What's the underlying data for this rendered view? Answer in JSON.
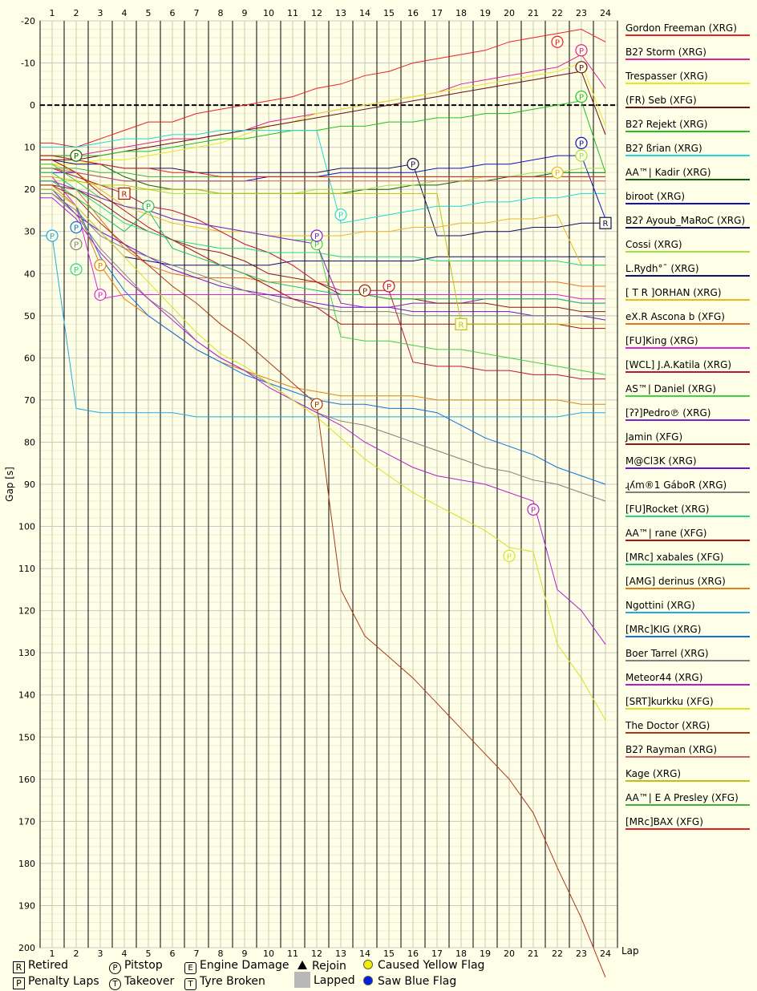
{
  "chart_data": {
    "type": "line",
    "xlabel": "Lap",
    "ylabel": "Gap [s]",
    "xlim": [
      1,
      24
    ],
    "ylim": [
      -20,
      200
    ],
    "x_ticks": [
      "1",
      "2",
      "3",
      "4",
      "5",
      "6",
      "7",
      "8",
      "9",
      "10",
      "11",
      "12",
      "13",
      "14",
      "15",
      "16",
      "17",
      "18",
      "19",
      "20",
      "21",
      "22",
      "23",
      "24"
    ],
    "y_ticks": [
      "-20",
      "-10",
      "0",
      "10",
      "20",
      "30",
      "40",
      "50",
      "60",
      "70",
      "80",
      "90",
      "100",
      "110",
      "120",
      "130",
      "140",
      "150",
      "160",
      "170",
      "180",
      "190",
      "200"
    ],
    "series": [
      {
        "name": "Gordon Freeman (XRG)",
        "color": "#e8202a",
        "values": [
          9,
          10,
          8,
          6,
          4,
          4,
          2,
          1,
          0,
          -1,
          -2,
          -4,
          -5,
          -7,
          -8,
          -10,
          -11,
          -12,
          -13,
          -15,
          -16,
          -17,
          -18,
          -15
        ],
        "events": [
          {
            "lap": 22,
            "mark": "P",
            "value": -15
          }
        ]
      },
      {
        "name": "B2ʔ Storm (XRG)",
        "color": "#e0208c",
        "values": [
          12,
          12,
          11,
          10,
          9,
          8,
          8,
          7,
          6,
          4,
          3,
          2,
          1,
          0,
          -1,
          -2,
          -3,
          -5,
          -6,
          -7,
          -8,
          -9,
          -12,
          -4
        ],
        "events": [
          {
            "lap": 23,
            "mark": "P",
            "value": -13
          }
        ]
      },
      {
        "name": "Trespasser (XRG)",
        "color": "#e8e820",
        "values": [
          14,
          14,
          13,
          13,
          12,
          11,
          10,
          9,
          7,
          5,
          4,
          2,
          1,
          0,
          -1,
          -2,
          -3,
          -4,
          -5,
          -6,
          -7,
          -8,
          -10,
          5
        ]
      },
      {
        "name": "(FR) Seb (XFG)",
        "color": "#6a1010",
        "values": [
          13,
          13,
          12,
          11,
          10,
          9,
          8,
          7,
          6,
          5,
          4,
          3,
          2,
          1,
          0,
          -1,
          -2,
          -3,
          -4,
          -5,
          -6,
          -7,
          -8,
          7
        ],
        "events": [
          {
            "lap": 23,
            "mark": "P",
            "value": -9
          }
        ]
      },
      {
        "name": "B2ʔ Rejekt (XRG)",
        "color": "#20c020",
        "values": [
          12,
          12,
          12,
          11,
          11,
          10,
          9,
          8,
          8,
          7,
          6,
          6,
          5,
          5,
          4,
          4,
          3,
          3,
          2,
          2,
          1,
          0,
          -1,
          16
        ],
        "events": [
          {
            "lap": 23,
            "mark": "P",
            "value": -2
          }
        ]
      },
      {
        "name": "B2ʔ ßrian (XRG)",
        "color": "#20d8d8",
        "values": [
          10,
          10,
          9,
          8,
          8,
          7,
          7,
          6,
          6,
          6,
          6,
          6,
          28,
          27,
          26,
          25,
          24,
          24,
          23,
          23,
          22,
          22,
          21,
          21
        ],
        "events": [
          {
            "lap": 13,
            "mark": "P",
            "value": 26
          }
        ]
      },
      {
        "name": "AA™| Kadir (XRG)",
        "color": "#106010",
        "values": [
          12,
          13,
          14,
          17,
          19,
          20,
          20,
          21,
          21,
          21,
          21,
          21,
          21,
          20,
          20,
          19,
          19,
          18,
          18,
          17,
          17,
          16,
          16,
          16
        ],
        "events": [
          {
            "lap": 2,
            "mark": "P",
            "value": 12
          }
        ]
      },
      {
        "name": "biroot (XRG)",
        "color": "#1010c0",
        "values": [
          16,
          16,
          17,
          18,
          18,
          18,
          18,
          18,
          18,
          17,
          17,
          17,
          16,
          16,
          16,
          16,
          15,
          15,
          14,
          14,
          13,
          12,
          12,
          27
        ],
        "events": [
          {
            "lap": 23,
            "mark": "P",
            "value": 9
          }
        ]
      },
      {
        "name": "B2ʔ Ayoub_MaRoC (XRG)",
        "color": "#101060",
        "values": [
          13,
          14,
          14,
          15,
          15,
          15,
          16,
          16,
          16,
          16,
          16,
          16,
          15,
          15,
          15,
          14,
          31,
          31,
          30,
          30,
          29,
          29,
          28,
          28
        ],
        "events": [
          {
            "lap": 16,
            "mark": "P",
            "value": 14
          },
          {
            "lap": 24,
            "mark": "R",
            "value": 28
          }
        ]
      },
      {
        "name": "Cossi (XRG)",
        "color": "#a0e040",
        "values": [
          18,
          18,
          19,
          20,
          20,
          21,
          21,
          21,
          21,
          21,
          21,
          20,
          20,
          20,
          19,
          19,
          18,
          18,
          17,
          17,
          16,
          16,
          15,
          15
        ],
        "events": [
          {
            "lap": 23,
            "mark": "P",
            "value": 12
          }
        ]
      },
      {
        "name": "L.Rydh°¯ (XRG)",
        "color": "#101070",
        "values": [
          20,
          24,
          30,
          36,
          37,
          38,
          38,
          38,
          38,
          38,
          37,
          37,
          37,
          37,
          37,
          37,
          36,
          36,
          36,
          36,
          36,
          36,
          36,
          36
        ]
      },
      {
        "name": "[ T R ]ORHAN (XRG)",
        "color": "#e8b820",
        "values": [
          14,
          16,
          20,
          24,
          26,
          28,
          29,
          30,
          30,
          31,
          31,
          31,
          31,
          30,
          30,
          29,
          29,
          28,
          28,
          27,
          27,
          26,
          38,
          38
        ],
        "events": [
          {
            "lap": 22,
            "mark": "P",
            "value": 16
          }
        ]
      },
      {
        "name": "eX.R Ascona b (XFG)",
        "color": "#e87020",
        "values": [
          16,
          20,
          27,
          34,
          38,
          40,
          41,
          41,
          41,
          42,
          42,
          42,
          42,
          42,
          42,
          42,
          42,
          42,
          42,
          42,
          42,
          42,
          43,
          43
        ]
      },
      {
        "name": "[FU]King (XRG)",
        "color": "#e020e0",
        "values": [
          17,
          24,
          46,
          45,
          45,
          45,
          45,
          45,
          45,
          45,
          45,
          45,
          45,
          45,
          45,
          45,
          45,
          45,
          45,
          45,
          45,
          45,
          46,
          46
        ],
        "events": [
          {
            "lap": 3,
            "mark": "P",
            "value": 45
          }
        ]
      },
      {
        "name": "[WCL] J.A.Katila (XRG)",
        "color": "#c01040",
        "values": [
          15,
          17,
          19,
          21,
          24,
          25,
          27,
          30,
          33,
          35,
          38,
          42,
          44,
          44,
          44,
          61,
          62,
          62,
          63,
          63,
          64,
          64,
          65,
          65
        ],
        "events": [
          {
            "lap": 15,
            "mark": "P",
            "value": 43
          }
        ]
      },
      {
        "name": "AS™| Daniel (XRG)",
        "color": "#40d040",
        "values": [
          14,
          18,
          22,
          24,
          25,
          27,
          28,
          29,
          30,
          31,
          32,
          32,
          55,
          56,
          56,
          57,
          58,
          58,
          59,
          60,
          61,
          62,
          63,
          64
        ],
        "events": [
          {
            "lap": 12,
            "mark": "P",
            "value": 33
          }
        ]
      },
      {
        "name": "[ʔʔ]Pedro℗ (XRG)",
        "color": "#8020d0",
        "values": [
          18,
          20,
          22,
          24,
          25,
          27,
          28,
          29,
          30,
          31,
          32,
          33,
          47,
          48,
          48,
          47,
          47,
          47,
          46,
          46,
          46,
          46,
          47,
          47
        ],
        "events": [
          {
            "lap": 12,
            "mark": "P",
            "value": 31
          }
        ]
      },
      {
        "name": "Jamin (XFG)",
        "color": "#8a1818",
        "values": [
          19,
          20,
          23,
          27,
          30,
          32,
          34,
          35,
          37,
          40,
          41,
          42,
          45,
          45,
          46,
          46,
          47,
          47,
          47,
          48,
          48,
          48,
          49,
          49
        ],
        "events": [
          {
            "lap": 14,
            "mark": "P",
            "value": 44
          }
        ]
      },
      {
        "name": "M@Cl3K (XRG)",
        "color": "#7010d0",
        "values": [
          20,
          26,
          30,
          33,
          36,
          39,
          41,
          43,
          44,
          45,
          46,
          47,
          48,
          48,
          48,
          49,
          49,
          49,
          49,
          49,
          50,
          50,
          50,
          51
        ]
      },
      {
        "name": "ɻʎm®1 GáboR (XRG)",
        "color": "#808080",
        "values": [
          21,
          25,
          31,
          34,
          36,
          38,
          40,
          42,
          44,
          46,
          48,
          48,
          49,
          49,
          49,
          50,
          50,
          50,
          50,
          50,
          50,
          50,
          50,
          50
        ],
        "events": [
          {
            "lap": 2,
            "mark": "P",
            "value": 33
          }
        ]
      },
      {
        "name": "[FU]Rocket (XRG)",
        "color": "#20d880",
        "values": [
          16,
          20,
          24,
          28,
          30,
          32,
          33,
          34,
          34,
          35,
          35,
          35,
          36,
          36,
          36,
          36,
          37,
          37,
          37,
          37,
          37,
          37,
          38,
          38
        ],
        "events": [
          {
            "lap": 2,
            "mark": "P",
            "value": 39
          }
        ]
      },
      {
        "name": "AA™| rane (XFG)",
        "color": "#b01010",
        "values": [
          13,
          16,
          21,
          25,
          29,
          32,
          35,
          38,
          40,
          43,
          46,
          48,
          52,
          52,
          52,
          52,
          52,
          52,
          52,
          52,
          52,
          52,
          53,
          53
        ],
        "events": [
          {
            "lap": 4,
            "mark": "R",
            "value": 21
          }
        ]
      },
      {
        "name": "[MRc] xabales (XFG)",
        "color": "#20c060",
        "values": [
          18,
          22,
          26,
          30,
          25,
          34,
          36,
          38,
          40,
          42,
          43,
          44,
          45,
          45,
          46,
          46,
          46,
          46,
          46,
          46,
          46,
          46,
          47,
          47
        ],
        "events": [
          {
            "lap": 5,
            "mark": "P",
            "value": 24
          }
        ]
      },
      {
        "name": "[AMG] derinus (XRG)",
        "color": "#e08010",
        "values": [
          19,
          24,
          38,
          46,
          50,
          54,
          58,
          61,
          63,
          65,
          67,
          68,
          69,
          69,
          69,
          69,
          70,
          70,
          70,
          70,
          70,
          70,
          71,
          71
        ],
        "events": [
          {
            "lap": 3,
            "mark": "P",
            "value": 38
          }
        ]
      },
      {
        "name": "Ngottini (XRG)",
        "color": "#20a8e8",
        "values": [
          31,
          72,
          73,
          73,
          73,
          73,
          74,
          74,
          74,
          74,
          74,
          74,
          74,
          74,
          74,
          74,
          74,
          74,
          74,
          74,
          74,
          74,
          73,
          73
        ],
        "events": [
          {
            "lap": 1,
            "mark": "P",
            "value": 31
          }
        ]
      },
      {
        "name": "[MRc]KIG (XRG)",
        "color": "#1070e0",
        "values": [
          20,
          24,
          36,
          44,
          50,
          54,
          58,
          61,
          64,
          66,
          68,
          70,
          71,
          71,
          72,
          72,
          73,
          76,
          79,
          81,
          83,
          86,
          88,
          90
        ],
        "events": [
          {
            "lap": 2,
            "mark": "P",
            "value": 29
          }
        ]
      },
      {
        "name": "Boer Tarrel (XRG)",
        "color": "#808080",
        "values": [
          21,
          26,
          34,
          40,
          46,
          50,
          56,
          60,
          63,
          66,
          70,
          73,
          75,
          76,
          78,
          80,
          82,
          84,
          86,
          87,
          89,
          90,
          92,
          94
        ]
      },
      {
        "name": "Meteor44 (XRG)",
        "color": "#b020d0",
        "values": [
          22,
          27,
          35,
          41,
          46,
          51,
          56,
          60,
          63,
          67,
          70,
          73,
          76,
          80,
          83,
          86,
          88,
          89,
          90,
          92,
          94,
          115,
          120,
          128
        ],
        "events": [
          {
            "lap": 21,
            "mark": "P",
            "value": 96
          }
        ]
      },
      {
        "name": "[SRT]kurkku (XFG)",
        "color": "#d8e020",
        "values": [
          20,
          24,
          30,
          36,
          42,
          48,
          54,
          59,
          62,
          66,
          70,
          74,
          79,
          84,
          88,
          92,
          95,
          98,
          101,
          105,
          106,
          128,
          136,
          146
        ],
        "events": [
          {
            "lap": 20,
            "mark": "P",
            "value": 107
          }
        ]
      },
      {
        "name": "The Doctor (XRG)",
        "color": "#a83818",
        "values": [
          19,
          22,
          28,
          33,
          38,
          43,
          47,
          52,
          56,
          61,
          66,
          71,
          115,
          126,
          131,
          136,
          142,
          148,
          154,
          160,
          168,
          181,
          193,
          207
        ],
        "events": [
          {
            "lap": 12,
            "mark": "P",
            "value": 71
          }
        ]
      },
      {
        "name": "B2ʔ Rayman (XRG)",
        "color": "#d06060",
        "values": [
          15,
          16,
          17,
          18,
          18,
          18,
          18,
          18,
          18,
          18,
          18,
          18,
          18,
          18,
          18,
          18,
          18,
          18,
          18,
          18,
          18,
          18,
          18,
          18
        ]
      },
      {
        "name": "Kage (XRG)",
        "color": "#c0c010",
        "values": [
          17,
          18,
          19,
          19,
          20,
          20,
          20,
          21,
          21,
          21,
          21,
          21,
          21,
          21,
          21,
          21,
          21,
          52,
          52,
          52,
          52,
          52,
          52,
          52
        ],
        "events": [
          {
            "lap": 18,
            "mark": "R",
            "value": 52
          }
        ]
      },
      {
        "name": "AA™| E A Presley (XFG)",
        "color": "#40b040",
        "values": [
          15,
          15,
          16,
          16,
          17,
          17,
          17,
          17,
          17,
          17,
          17,
          17,
          17,
          17,
          17,
          17,
          17,
          17,
          17,
          17,
          17,
          17,
          17,
          17
        ]
      },
      {
        "name": "[MRc]BAX (XFG)",
        "color": "#e02020",
        "values": [
          12,
          13,
          14,
          15,
          15,
          16,
          16,
          17,
          17,
          17,
          17,
          17,
          17,
          17,
          17,
          17,
          17,
          17,
          17,
          17,
          17,
          17,
          17,
          17
        ]
      }
    ],
    "legend_placement": "right",
    "grid": true
  },
  "keys": {
    "retired": "Retired",
    "pitstop": "Pitstop",
    "engine_damage": "Engine Damage",
    "rejoin": "Rejoin",
    "caused_yellow": "Caused Yellow Flag",
    "penalty_laps": "Penalty Laps",
    "takeover": "Takeover",
    "tyre_broken": "Tyre Broken",
    "lapped": "Lapped",
    "saw_blue": "Saw Blue Flag",
    "glyph_R": "R",
    "glyph_P": "P",
    "glyph_E": "E",
    "glyph_T": "T",
    "yellow_color": "#f0f000",
    "blue_color": "#0020e0",
    "lapped_color": "#b8b8b8"
  }
}
